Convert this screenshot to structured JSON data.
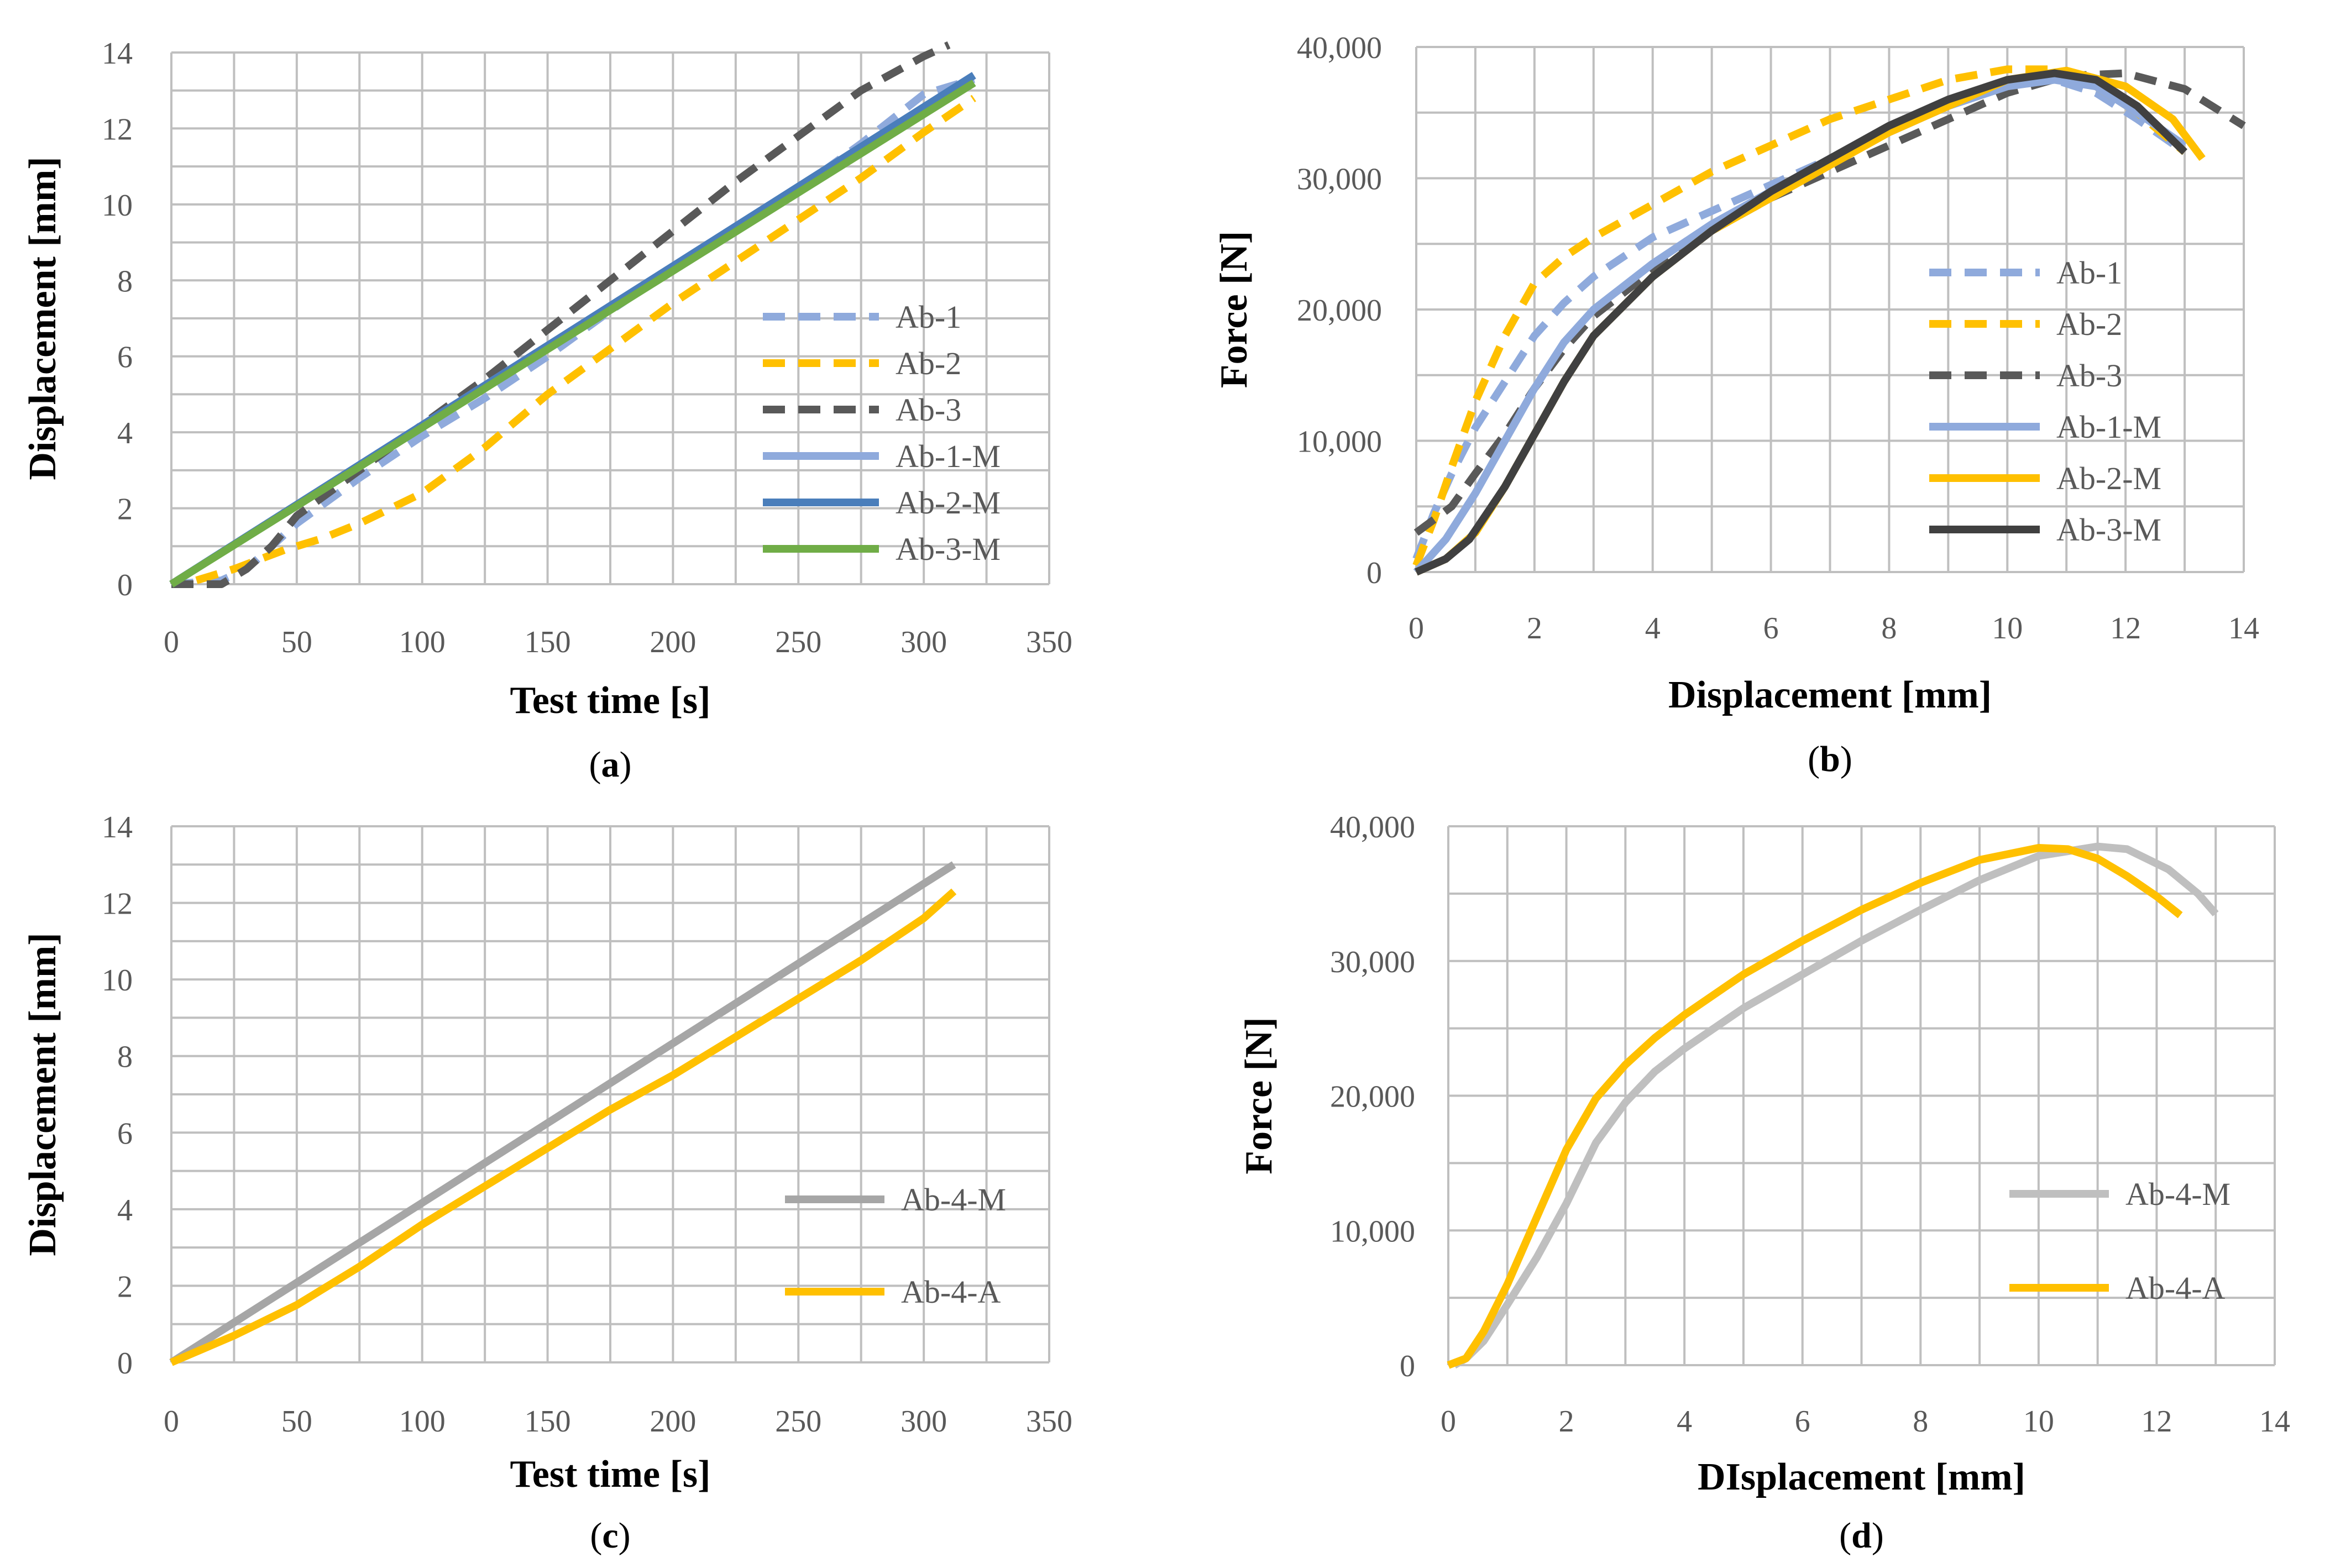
{
  "chart_data": [
    {
      "id": "a",
      "type": "line",
      "caption": "a",
      "xlabel": "Test time [s]",
      "ylabel": "Displacement [mm]",
      "xlim": [
        0,
        350
      ],
      "ylim": [
        0,
        14
      ],
      "xticks": [
        0,
        50,
        100,
        150,
        200,
        250,
        300,
        350
      ],
      "yticks": [
        0,
        2,
        4,
        6,
        8,
        10,
        12,
        14
      ],
      "ytick_labels": [
        "0",
        "2",
        "4",
        "6",
        "8",
        "10",
        "12",
        "14"
      ],
      "grid": true,
      "legend_position": "center-right",
      "series": [
        {
          "name": "Ab-1",
          "color": "#8faadc",
          "style": "dashed",
          "points": [
            [
              0,
              0
            ],
            [
              20,
              0.1
            ],
            [
              30,
              0.4
            ],
            [
              40,
              1.0
            ],
            [
              50,
              1.6
            ],
            [
              75,
              2.8
            ],
            [
              100,
              3.9
            ],
            [
              125,
              4.9
            ],
            [
              150,
              6.0
            ],
            [
              175,
              7.2
            ],
            [
              200,
              8.3
            ],
            [
              225,
              9.3
            ],
            [
              250,
              10.4
            ],
            [
              275,
              11.6
            ],
            [
              300,
              12.9
            ],
            [
              320,
              13.3
            ]
          ]
        },
        {
          "name": "Ab-2",
          "color": "#ffc000",
          "style": "dashed",
          "points": [
            [
              10,
              0.1
            ],
            [
              25,
              0.4
            ],
            [
              45,
              0.9
            ],
            [
              60,
              1.2
            ],
            [
              75,
              1.6
            ],
            [
              100,
              2.4
            ],
            [
              125,
              3.6
            ],
            [
              150,
              5.0
            ],
            [
              175,
              6.2
            ],
            [
              200,
              7.4
            ],
            [
              225,
              8.5
            ],
            [
              250,
              9.6
            ],
            [
              275,
              10.7
            ],
            [
              300,
              11.9
            ],
            [
              320,
              12.8
            ]
          ]
        },
        {
          "name": "Ab-3",
          "color": "#595959",
          "style": "dashed",
          "points": [
            [
              0,
              0
            ],
            [
              20,
              0
            ],
            [
              30,
              0.4
            ],
            [
              40,
              1.0
            ],
            [
              50,
              1.8
            ],
            [
              75,
              3.0
            ],
            [
              100,
              4.2
            ],
            [
              125,
              5.4
            ],
            [
              150,
              6.7
            ],
            [
              175,
              8.0
            ],
            [
              200,
              9.3
            ],
            [
              225,
              10.6
            ],
            [
              250,
              11.8
            ],
            [
              275,
              13.0
            ],
            [
              300,
              13.9
            ],
            [
              310,
              14.2
            ]
          ]
        },
        {
          "name": "Ab-1-M",
          "color": "#8faadc",
          "style": "solid",
          "points": [
            [
              0,
              0
            ],
            [
              320,
              13.4
            ]
          ]
        },
        {
          "name": "Ab-2-M",
          "color": "#4a7ebb",
          "style": "solid",
          "points": [
            [
              0,
              0
            ],
            [
              320,
              13.4
            ]
          ]
        },
        {
          "name": "Ab-3-M",
          "color": "#70ad47",
          "style": "solid",
          "points": [
            [
              0,
              0
            ],
            [
              320,
              13.2
            ]
          ]
        }
      ]
    },
    {
      "id": "b",
      "type": "line",
      "caption": "b",
      "xlabel": "Displacement [mm]",
      "ylabel": "Force [N]",
      "xlim": [
        0,
        14
      ],
      "ylim": [
        0,
        40000
      ],
      "xticks": [
        0,
        2,
        4,
        6,
        8,
        10,
        12,
        14
      ],
      "yticks": [
        0,
        10000,
        20000,
        30000,
        40000
      ],
      "ytick_labels": [
        "0",
        "10,000",
        "20,000",
        "30,000",
        "40,000"
      ],
      "grid": true,
      "legend_position": "center-right",
      "series": [
        {
          "name": "Ab-1",
          "color": "#8faadc",
          "style": "dashed",
          "points": [
            [
              0,
              1000
            ],
            [
              0.3,
              4500
            ],
            [
              0.6,
              7500
            ],
            [
              1.0,
              11000
            ],
            [
              1.5,
              14500
            ],
            [
              2.0,
              18000
            ],
            [
              2.5,
              20500
            ],
            [
              3.0,
              22500
            ],
            [
              4.0,
              25500
            ],
            [
              5.0,
              27500
            ],
            [
              6.0,
              29500
            ],
            [
              7.0,
              31500
            ],
            [
              8.0,
              33500
            ],
            [
              9.0,
              35500
            ],
            [
              10.0,
              37000
            ],
            [
              10.8,
              37500
            ],
            [
              11.5,
              36500
            ],
            [
              12.2,
              34500
            ],
            [
              13.0,
              32000
            ]
          ]
        },
        {
          "name": "Ab-2",
          "color": "#ffc000",
          "style": "dashed",
          "points": [
            [
              0,
              500
            ],
            [
              0.3,
              4000
            ],
            [
              0.6,
              8000
            ],
            [
              1.0,
              13000
            ],
            [
              1.5,
              18000
            ],
            [
              2.0,
              22000
            ],
            [
              2.5,
              24000
            ],
            [
              3.0,
              25500
            ],
            [
              4.0,
              28000
            ],
            [
              5.0,
              30500
            ],
            [
              6.0,
              32500
            ],
            [
              7.0,
              34500
            ],
            [
              8.0,
              36000
            ],
            [
              9.0,
              37500
            ],
            [
              10.0,
              38300
            ],
            [
              10.8,
              38300
            ],
            [
              11.5,
              37000
            ],
            [
              12.2,
              35000
            ],
            [
              13.0,
              32000
            ]
          ]
        },
        {
          "name": "Ab-3",
          "color": "#595959",
          "style": "dashed",
          "points": [
            [
              0,
              3000
            ],
            [
              0.3,
              4000
            ],
            [
              0.6,
              5000
            ],
            [
              1.0,
              7500
            ],
            [
              1.5,
              10500
            ],
            [
              2.0,
              14000
            ],
            [
              2.5,
              17000
            ],
            [
              3.0,
              19500
            ],
            [
              4.0,
              23000
            ],
            [
              5.0,
              26000
            ],
            [
              6.0,
              28500
            ],
            [
              7.0,
              30500
            ],
            [
              8.0,
              32500
            ],
            [
              9.0,
              34500
            ],
            [
              10.0,
              36500
            ],
            [
              11.0,
              37800
            ],
            [
              12.0,
              38000
            ],
            [
              13.0,
              36800
            ],
            [
              14.0,
              34000
            ]
          ]
        },
        {
          "name": "Ab-1-M",
          "color": "#8faadc",
          "style": "solid",
          "points": [
            [
              0,
              0
            ],
            [
              0.5,
              2500
            ],
            [
              1.0,
              6000
            ],
            [
              1.5,
              10000
            ],
            [
              2.0,
              14000
            ],
            [
              2.5,
              17500
            ],
            [
              3.0,
              20000
            ],
            [
              4.0,
              23500
            ],
            [
              5.0,
              26500
            ],
            [
              6.0,
              29000
            ],
            [
              7.0,
              31500
            ],
            [
              8.0,
              33500
            ],
            [
              9.0,
              35500
            ],
            [
              10.0,
              37000
            ],
            [
              10.8,
              37500
            ],
            [
              11.5,
              37000
            ],
            [
              12.2,
              35000
            ],
            [
              13.0,
              32500
            ]
          ]
        },
        {
          "name": "Ab-2-M",
          "color": "#ffc000",
          "style": "solid",
          "points": [
            [
              0,
              0
            ],
            [
              0.5,
              1000
            ],
            [
              1.0,
              3000
            ],
            [
              1.5,
              6500
            ],
            [
              2.0,
              10500
            ],
            [
              2.5,
              14500
            ],
            [
              3.0,
              18000
            ],
            [
              4.0,
              22500
            ],
            [
              5.0,
              26000
            ],
            [
              6.0,
              28500
            ],
            [
              7.0,
              31000
            ],
            [
              8.0,
              33500
            ],
            [
              9.0,
              35500
            ],
            [
              10.0,
              37500
            ],
            [
              11.0,
              38200
            ],
            [
              12.0,
              37000
            ],
            [
              12.8,
              34500
            ],
            [
              13.3,
              31500
            ]
          ]
        },
        {
          "name": "Ab-3-M",
          "color": "#404040",
          "style": "solid",
          "points": [
            [
              0,
              0
            ],
            [
              0.5,
              1000
            ],
            [
              0.9,
              2500
            ],
            [
              1.5,
              6500
            ],
            [
              2.0,
              10500
            ],
            [
              2.5,
              14500
            ],
            [
              3.0,
              18000
            ],
            [
              4.0,
              22500
            ],
            [
              5.0,
              26000
            ],
            [
              6.0,
              29000
            ],
            [
              7.0,
              31500
            ],
            [
              8.0,
              34000
            ],
            [
              9.0,
              36000
            ],
            [
              10.0,
              37500
            ],
            [
              10.8,
              38000
            ],
            [
              11.5,
              37500
            ],
            [
              12.2,
              35500
            ],
            [
              13.0,
              32000
            ]
          ]
        }
      ]
    },
    {
      "id": "c",
      "type": "line",
      "caption": "c",
      "xlabel": "Test time [s]",
      "ylabel": "Displacement [mm]",
      "xlim": [
        0,
        350
      ],
      "ylim": [
        0,
        14
      ],
      "xticks": [
        0,
        50,
        100,
        150,
        200,
        250,
        300,
        350
      ],
      "yticks": [
        0,
        2,
        4,
        6,
        8,
        10,
        12,
        14
      ],
      "ytick_labels": [
        "0",
        "2",
        "4",
        "6",
        "8",
        "10",
        "12",
        "14"
      ],
      "grid": true,
      "legend_position": "bottom-right",
      "series": [
        {
          "name": "Ab-4-M",
          "color": "#a6a6a6",
          "style": "solid",
          "points": [
            [
              0,
              0
            ],
            [
              312,
              13.0
            ]
          ]
        },
        {
          "name": "Ab-4-A",
          "color": "#ffc000",
          "style": "solid",
          "points": [
            [
              0,
              0
            ],
            [
              25,
              0.7
            ],
            [
              50,
              1.5
            ],
            [
              75,
              2.5
            ],
            [
              100,
              3.6
            ],
            [
              125,
              4.6
            ],
            [
              150,
              5.6
            ],
            [
              175,
              6.6
            ],
            [
              200,
              7.5
            ],
            [
              225,
              8.5
            ],
            [
              250,
              9.5
            ],
            [
              275,
              10.5
            ],
            [
              300,
              11.6
            ],
            [
              312,
              12.3
            ]
          ]
        }
      ]
    },
    {
      "id": "d",
      "type": "line",
      "caption": "d",
      "xlabel": "DIsplacement [mm]",
      "ylabel": "Force [N]",
      "xlim": [
        0,
        14
      ],
      "ylim": [
        0,
        40000
      ],
      "xticks": [
        0,
        2,
        4,
        6,
        8,
        10,
        12,
        14
      ],
      "yticks": [
        0,
        10000,
        20000,
        30000,
        40000
      ],
      "ytick_labels": [
        "0",
        "10,000",
        "20,000",
        "30,000",
        "40,000"
      ],
      "grid": true,
      "legend_position": "bottom-right",
      "series": [
        {
          "name": "Ab-4-M",
          "color": "#bfbfbf",
          "style": "solid",
          "points": [
            [
              0.1,
              0
            ],
            [
              0.3,
              500
            ],
            [
              0.6,
              1800
            ],
            [
              1.0,
              4500
            ],
            [
              1.5,
              8000
            ],
            [
              2.0,
              12000
            ],
            [
              2.5,
              16500
            ],
            [
              3.0,
              19500
            ],
            [
              3.5,
              21800
            ],
            [
              4.0,
              23500
            ],
            [
              5.0,
              26500
            ],
            [
              6.0,
              29000
            ],
            [
              7.0,
              31500
            ],
            [
              8.0,
              33800
            ],
            [
              9.0,
              36000
            ],
            [
              10.0,
              37800
            ],
            [
              11.0,
              38500
            ],
            [
              11.5,
              38300
            ],
            [
              12.2,
              36800
            ],
            [
              12.7,
              35000
            ],
            [
              13.0,
              33500
            ]
          ]
        },
        {
          "name": "Ab-4-A",
          "color": "#ffc000",
          "style": "solid",
          "points": [
            [
              0,
              0
            ],
            [
              0.3,
              500
            ],
            [
              0.6,
              2500
            ],
            [
              1.0,
              6000
            ],
            [
              1.5,
              11000
            ],
            [
              2.0,
              16000
            ],
            [
              2.5,
              19800
            ],
            [
              3.0,
              22300
            ],
            [
              3.5,
              24300
            ],
            [
              4.0,
              26000
            ],
            [
              5.0,
              29000
            ],
            [
              6.0,
              31500
            ],
            [
              7.0,
              33800
            ],
            [
              8.0,
              35800
            ],
            [
              9.0,
              37500
            ],
            [
              10.0,
              38400
            ],
            [
              10.5,
              38300
            ],
            [
              11.0,
              37600
            ],
            [
              11.5,
              36300
            ],
            [
              12.0,
              34800
            ],
            [
              12.4,
              33400
            ]
          ]
        }
      ]
    }
  ]
}
